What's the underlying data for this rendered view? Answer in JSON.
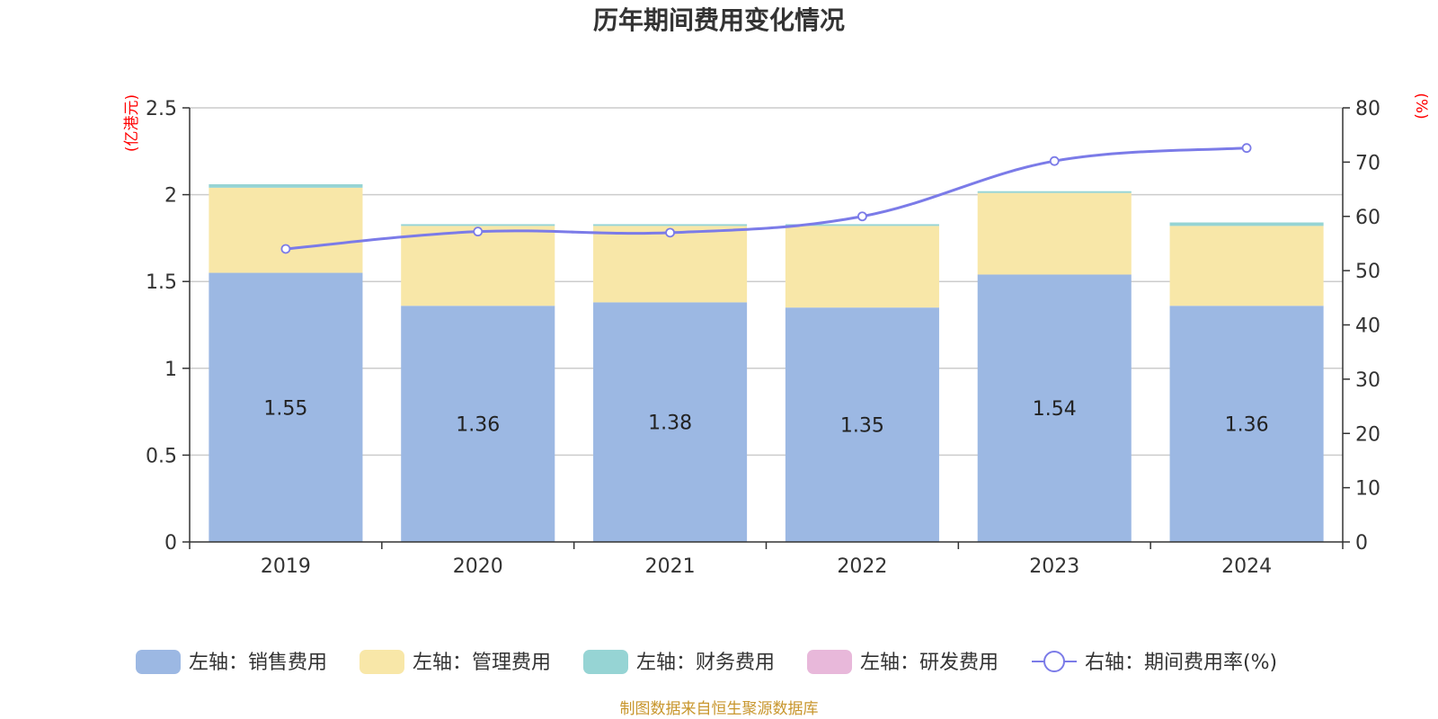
{
  "chart_data": {
    "type": "bar",
    "title": "历年期间费用变化情况",
    "categories": [
      "2019",
      "2020",
      "2021",
      "2022",
      "2023",
      "2024"
    ],
    "left_axis": {
      "unit_label": "(亿港元)",
      "ylim": [
        0,
        2.5
      ],
      "ticks": [
        "0",
        "0.5",
        "1",
        "1.5",
        "2",
        "2.5"
      ]
    },
    "right_axis": {
      "unit_label": "(%)",
      "ylim": [
        0,
        80
      ],
      "ticks": [
        "0",
        "10",
        "20",
        "30",
        "40",
        "50",
        "60",
        "70",
        "80"
      ]
    },
    "series": [
      {
        "name": "左轴：销售费用",
        "kind": "bar",
        "axis": "left",
        "color": "#9cb8e3",
        "values": [
          1.55,
          1.36,
          1.38,
          1.35,
          1.54,
          1.36
        ],
        "labels": [
          "1.55",
          "1.36",
          "1.38",
          "1.35",
          "1.54",
          "1.36"
        ]
      },
      {
        "name": "左轴：管理费用",
        "kind": "bar",
        "axis": "left",
        "color": "#f8e7a8",
        "values": [
          0.49,
          0.46,
          0.44,
          0.47,
          0.47,
          0.46
        ]
      },
      {
        "name": "左轴：财务费用",
        "kind": "bar",
        "axis": "left",
        "color": "#96d4d4",
        "values": [
          0.02,
          0.01,
          0.01,
          0.01,
          0.01,
          0.02
        ]
      },
      {
        "name": "左轴：研发费用",
        "kind": "bar",
        "axis": "left",
        "color": "#e8b8da",
        "values": [
          0,
          0,
          0,
          0,
          0,
          0
        ]
      },
      {
        "name": "右轴：期间费用率(%)",
        "kind": "line",
        "axis": "right",
        "color": "#7b7be8",
        "values": [
          54.0,
          57.2,
          57.0,
          60.0,
          70.2,
          72.6
        ]
      }
    ],
    "grid": true,
    "legend_position": "bottom",
    "source": "制图数据来自恒生聚源数据库"
  }
}
